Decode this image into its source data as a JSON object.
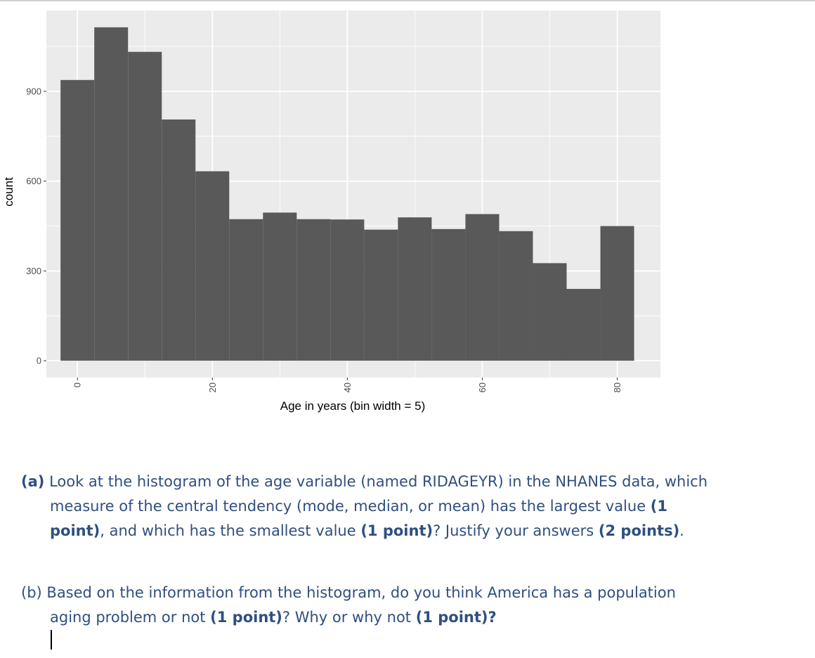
{
  "chart_data": {
    "type": "bar",
    "xlabel": "Age in years (bin width = 5)",
    "ylabel": "count",
    "bin_width": 5,
    "bins": [
      {
        "x": 0,
        "count": 938
      },
      {
        "x": 5,
        "count": 1114
      },
      {
        "x": 10,
        "count": 1032
      },
      {
        "x": 15,
        "count": 806
      },
      {
        "x": 20,
        "count": 633
      },
      {
        "x": 25,
        "count": 473
      },
      {
        "x": 30,
        "count": 495
      },
      {
        "x": 35,
        "count": 473
      },
      {
        "x": 40,
        "count": 472
      },
      {
        "x": 45,
        "count": 438
      },
      {
        "x": 50,
        "count": 479
      },
      {
        "x": 55,
        "count": 440
      },
      {
        "x": 60,
        "count": 490
      },
      {
        "x": 65,
        "count": 433
      },
      {
        "x": 70,
        "count": 326
      },
      {
        "x": 75,
        "count": 240
      },
      {
        "x": 80,
        "count": 450
      }
    ],
    "x_ticks": [
      "0",
      "20",
      "40",
      "60",
      "80"
    ],
    "x_tick_values": [
      0,
      20,
      40,
      60,
      80
    ],
    "y_ticks": [
      "0",
      "300",
      "600",
      "900"
    ],
    "y_tick_values": [
      0,
      300,
      600,
      900
    ],
    "xlim": [
      -4.6,
      86.4
    ],
    "ylim": [
      -56,
      1170
    ],
    "grid": true,
    "colors": {
      "panel_background": "#ebebeb",
      "grid": "#ffffff",
      "bars": "#595959",
      "text": "#4d4d4d",
      "axis_title": "#000000"
    }
  },
  "questions": {
    "a": {
      "label": "(a)",
      "line1": "Look at the histogram of the age variable (named RIDAGEYR) in the NHANES data, which",
      "line2_text": "measure of the central tendency (mode, median, or mean) has the largest value ",
      "line2_bold": "(1",
      "line3_bold1": "point)",
      "line3_text1": ", and which has the smallest value ",
      "line3_bold2": "(1 point)",
      "line3_text2": "? Justify your answers ",
      "line3_bold3": "(2 points)",
      "line3_text3": "."
    },
    "b": {
      "label": "(b)",
      "line1": "Based on the information from the histogram, do you think America has a population",
      "line2_text1": "aging problem or not ",
      "line2_bold1": "(1 point)",
      "line2_text2": "? Why or why not ",
      "line2_bold2": "(1 point)?"
    }
  }
}
